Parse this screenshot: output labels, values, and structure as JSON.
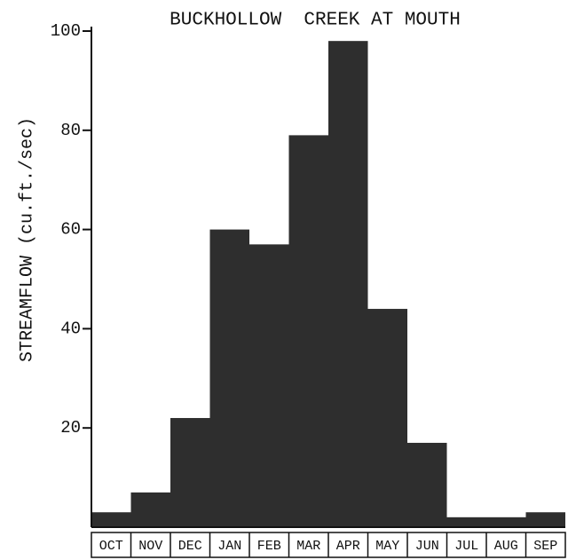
{
  "chart_data": {
    "type": "bar",
    "title": "BUCKHOLLOW  CREEK AT MOUTH",
    "y_label": "STREAMFLOW (cu.ft./sec)",
    "categories": [
      "OCT",
      "NOV",
      "DEC",
      "JAN",
      "FEB",
      "MAR",
      "APR",
      "MAY",
      "JUN",
      "JUL",
      "AUG",
      "SEP"
    ],
    "values": [
      3,
      7,
      22,
      60,
      57,
      79,
      98,
      44,
      17,
      2,
      2,
      3
    ],
    "color": "#2e2e2e",
    "ylim": [
      0,
      100
    ],
    "yticks": [
      20,
      40,
      60,
      80,
      100
    ],
    "grid": false
  }
}
